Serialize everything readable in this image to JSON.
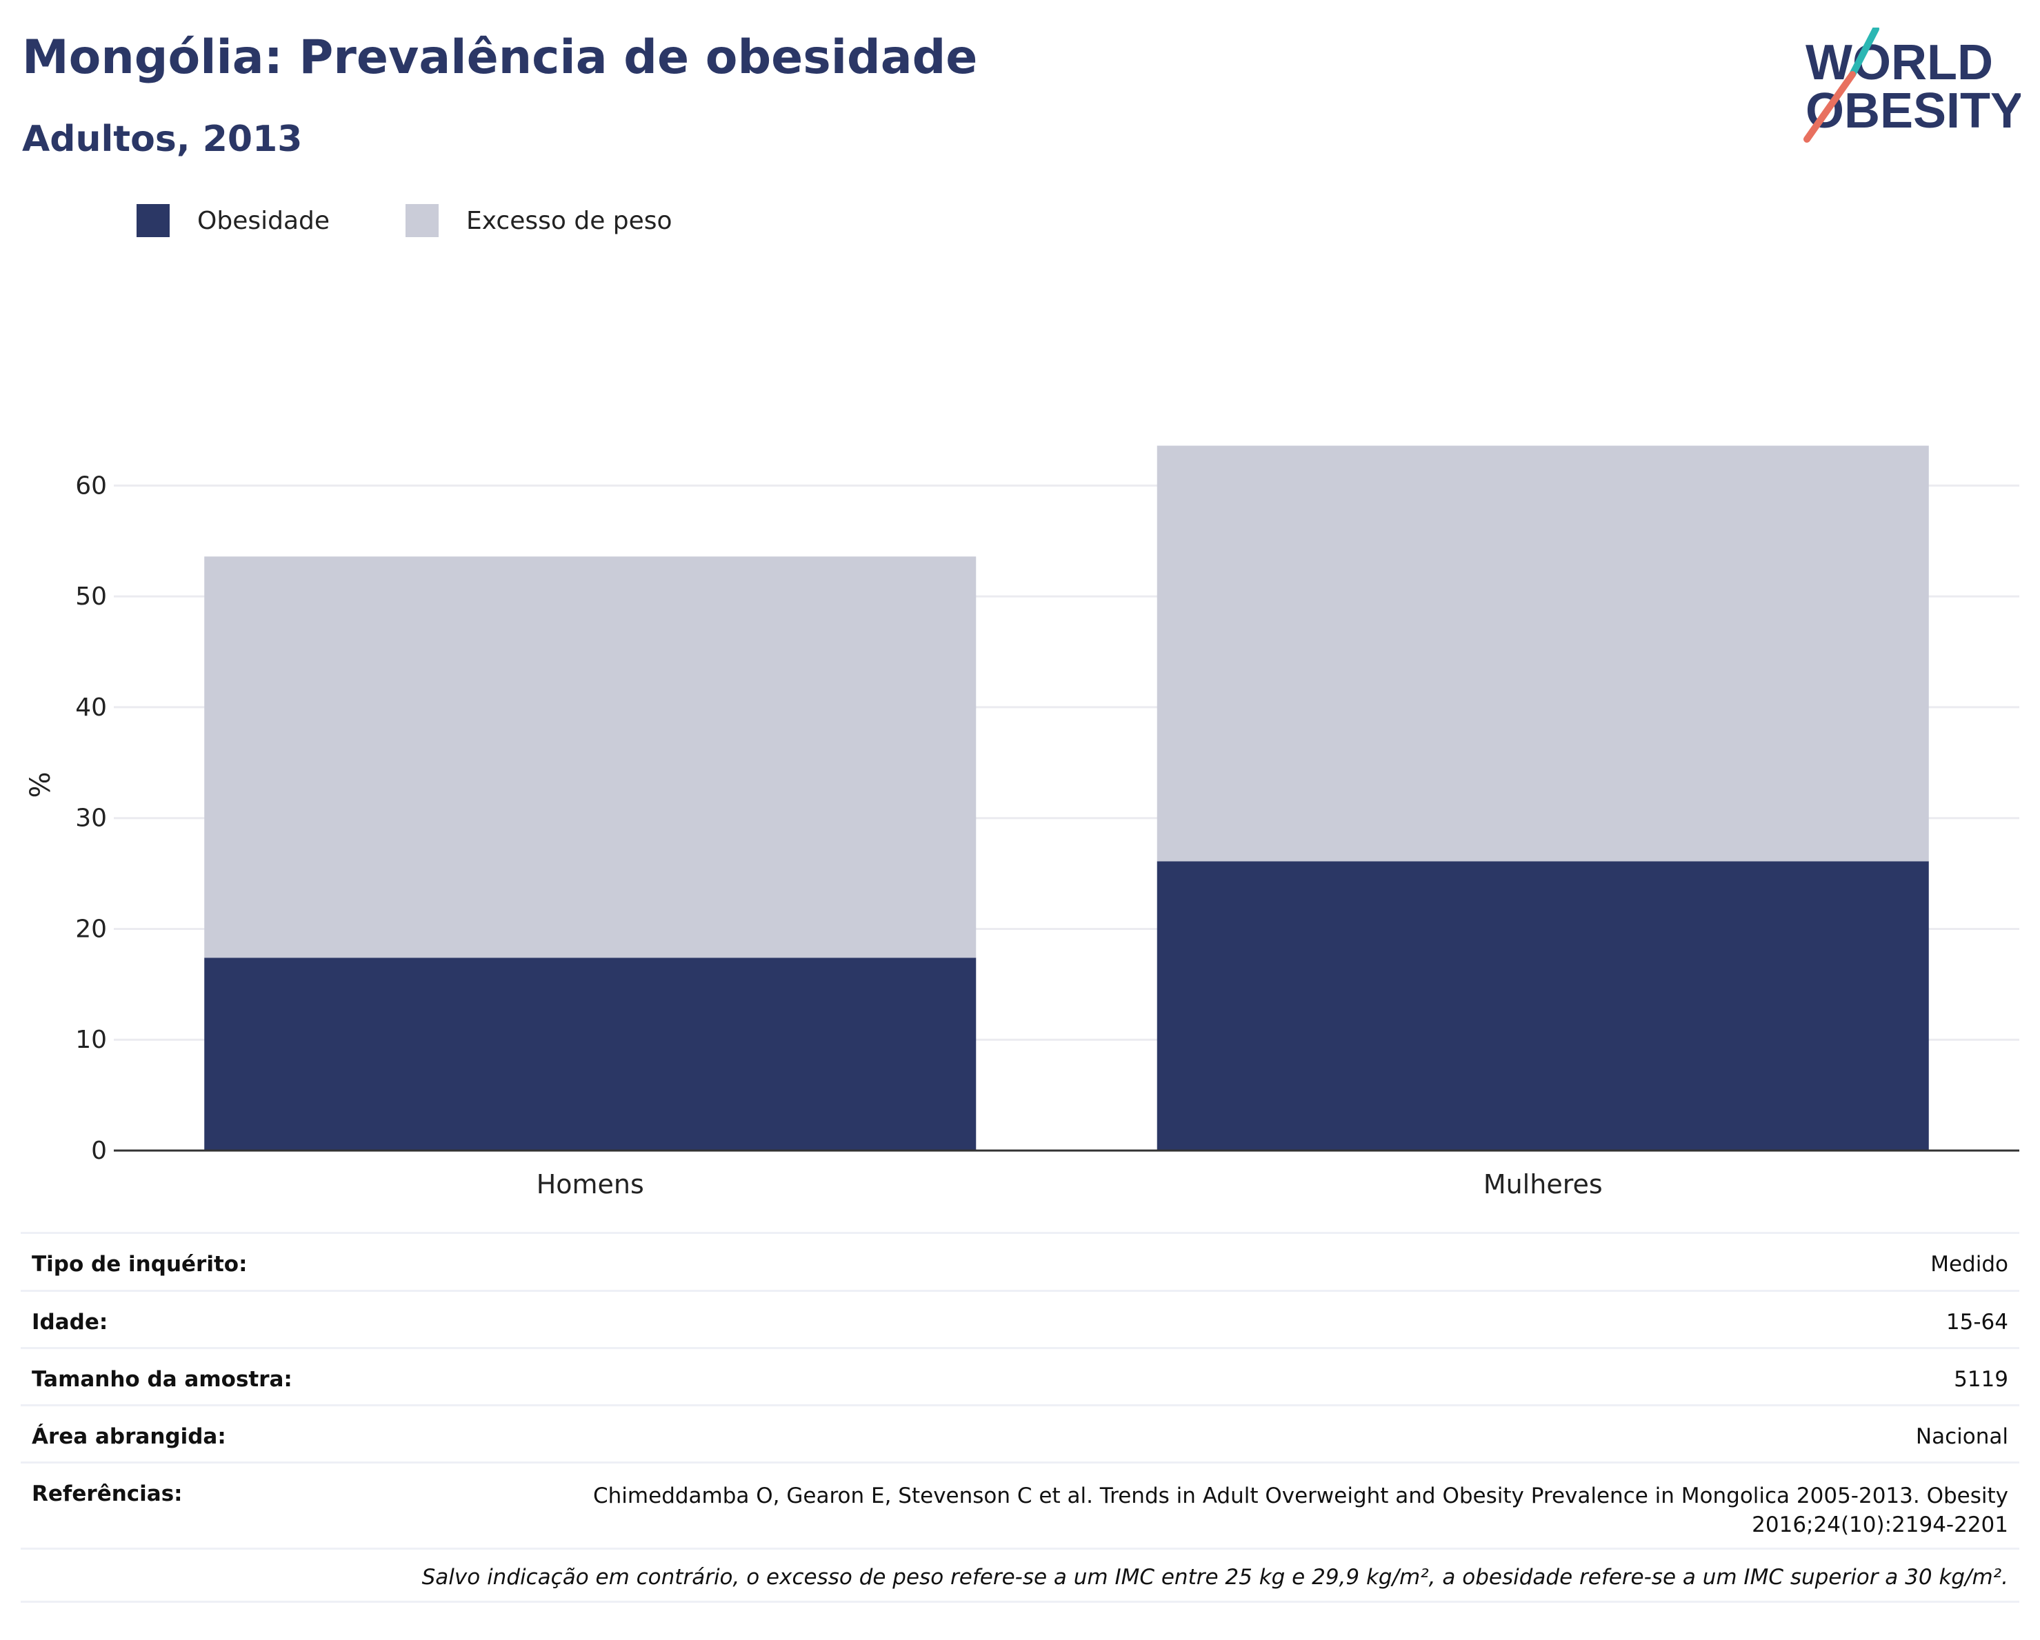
{
  "header": {
    "title": "Mongólia: Prevalência de obesidade",
    "subtitle": "Adultos, 2013"
  },
  "logo": {
    "line1": "WORLD",
    "line2": "OBESITY"
  },
  "legend": [
    {
      "label": "Obesidade",
      "color": "#2b3765"
    },
    {
      "label": "Excesso de peso",
      "color": "#caccd8"
    }
  ],
  "chart_data": {
    "type": "bar",
    "stacked": true,
    "categories": [
      "Homens",
      "Mulheres"
    ],
    "series": [
      {
        "name": "Obesidade",
        "values": [
          17.4,
          26.1
        ],
        "color": "#2b3765"
      },
      {
        "name": "Excesso de peso",
        "values": [
          36.2,
          37.5
        ],
        "color": "#caccd8"
      }
    ],
    "ylabel": "%",
    "xlabel": "",
    "ylim": [
      0,
      65
    ],
    "yticks": [
      0,
      10,
      20,
      30,
      40,
      50,
      60
    ],
    "grid": true,
    "legend_position": "top-left"
  },
  "info": {
    "rows": [
      {
        "label": "Tipo de inquérito:",
        "value": "Medido"
      },
      {
        "label": "Idade:",
        "value": "15-64"
      },
      {
        "label": "Tamanho da amostra:",
        "value": "5119"
      },
      {
        "label": "Área abrangida:",
        "value": "Nacional"
      },
      {
        "label": "Referências:",
        "value": "Chimeddamba O, Gearon E, Stevenson C et al. Trends in Adult Overweight and Obesity Prevalence in Mongolica 2005-2013. Obesity 2016;24(10):2194-2201"
      }
    ],
    "note": "Salvo indicação em contrário, o excesso de peso refere-se a um IMC entre 25 kg e 29,9 kg/m², a obesidade refere-se a um IMC superior a 30 kg/m²."
  }
}
